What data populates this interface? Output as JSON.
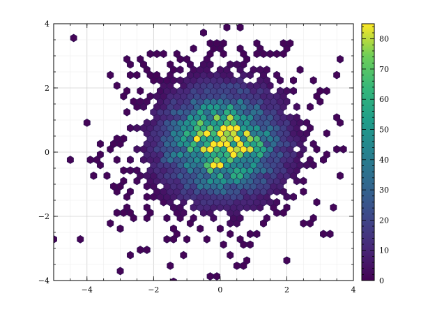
{
  "chart_data": {
    "type": "hexbin",
    "title": "",
    "xlabel": "",
    "ylabel": "",
    "xlim": [
      -5,
      4
    ],
    "ylim": [
      -4,
      4
    ],
    "x_ticks": [
      -4,
      -2,
      0,
      2,
      4
    ],
    "x_tick_labels": [
      "−4",
      "−2",
      "0",
      "2",
      "4"
    ],
    "y_ticks": [
      -4,
      -2,
      0,
      2,
      4
    ],
    "y_tick_labels": [
      "−4",
      "−2",
      "0",
      "2",
      "4"
    ],
    "grid": true,
    "colormap": "viridis",
    "colorbar": {
      "min": 0,
      "max": 85,
      "ticks": [
        0,
        10,
        20,
        30,
        40,
        50,
        60,
        70,
        80
      ],
      "tick_labels": [
        "0",
        "10",
        "20",
        "30",
        "40",
        "50",
        "60",
        "70",
        "80"
      ]
    },
    "distribution": "bivariate normal, centered near (0, 0.3), peak count ≈ 85",
    "bins": [
      {
        "x": 0.0,
        "y": 0.3,
        "count": 75
      },
      {
        "x": -0.5,
        "y": 0.0,
        "count": 85
      },
      {
        "x": 0.0,
        "y": 0.0,
        "count": 80
      },
      {
        "x": 0.5,
        "y": 0.5,
        "count": 65
      },
      {
        "x": -0.5,
        "y": 0.6,
        "count": 55
      },
      {
        "x": 0.5,
        "y": -0.3,
        "count": 60
      },
      {
        "x": -1.0,
        "y": 0.3,
        "count": 40
      },
      {
        "x": 1.0,
        "y": 0.3,
        "count": 45
      },
      {
        "x": 0.0,
        "y": -0.8,
        "count": 45
      },
      {
        "x": 0.0,
        "y": 1.2,
        "count": 40
      },
      {
        "x": -2.0,
        "y": 0.0,
        "count": 15
      },
      {
        "x": 2.0,
        "y": 0.0,
        "count": 15
      },
      {
        "x": 0.0,
        "y": 2.0,
        "count": 12
      },
      {
        "x": 0.0,
        "y": -2.0,
        "count": 14
      },
      {
        "x": -3.5,
        "y": 0.2,
        "count": 1
      },
      {
        "x": 3.5,
        "y": 2.8,
        "count": 1
      },
      {
        "x": -0.1,
        "y": -3.8,
        "count": 1
      },
      {
        "x": 0.0,
        "y": 3.2,
        "count": 1
      }
    ]
  }
}
